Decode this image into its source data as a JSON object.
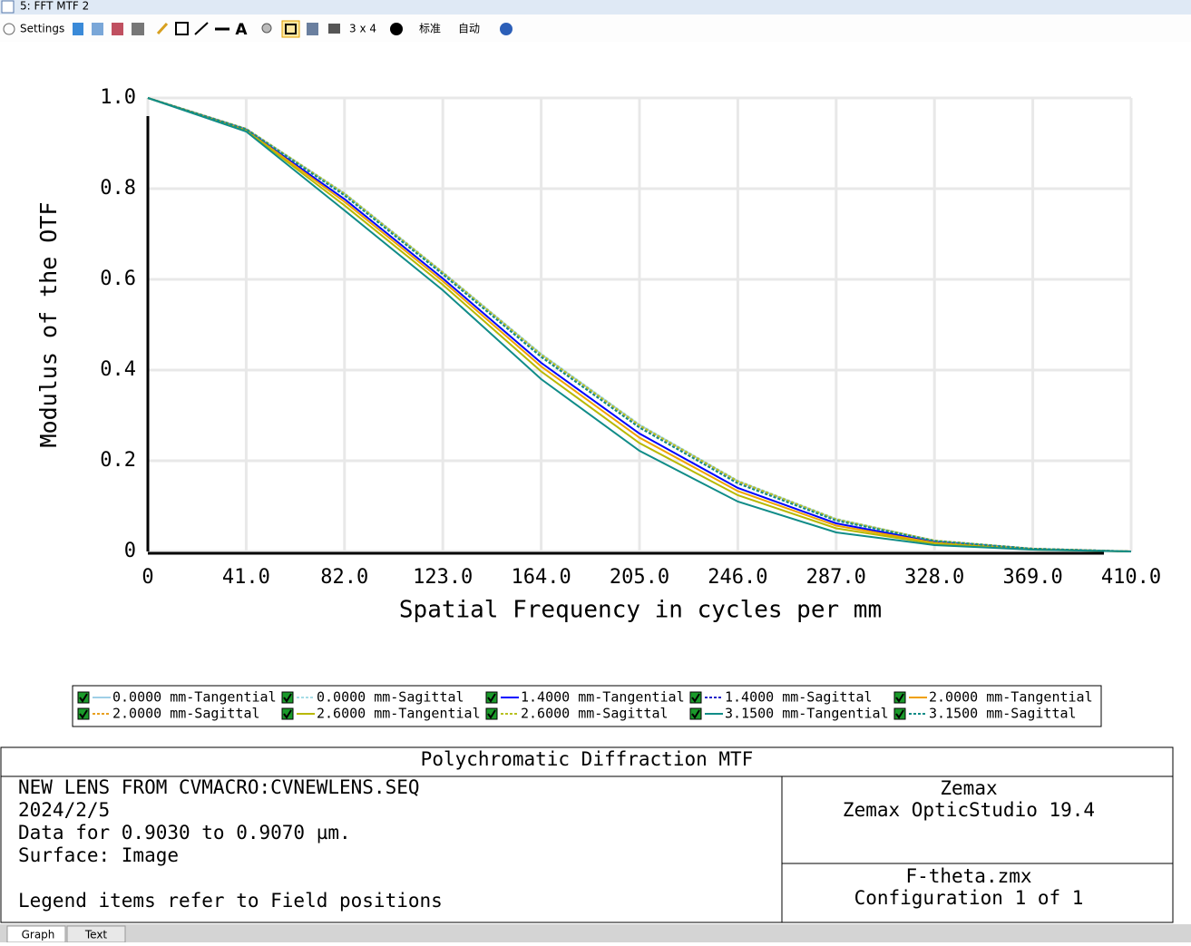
{
  "window": {
    "title": "5: FFT MTF 2"
  },
  "toolbar": {
    "settings": "Settings",
    "layout": "3 x 4",
    "standard": "标准",
    "auto": "自动"
  },
  "chart_data": {
    "type": "line",
    "x_label": "Spatial Frequency in cycles per mm",
    "y_label": "Modulus of the OTF",
    "x": [
      0,
      41,
      82,
      123,
      164,
      205,
      246,
      287,
      328,
      369,
      410
    ],
    "xlim": [
      0,
      410
    ],
    "ylim": [
      0,
      1
    ],
    "xticks": [
      0,
      {
        "value": 41,
        "label": "41.0"
      },
      {
        "value": 82,
        "label": "82.0"
      },
      {
        "value": 123,
        "label": "123.0"
      },
      {
        "value": 164,
        "label": "164.0"
      },
      {
        "value": 205,
        "label": "205.0"
      },
      {
        "value": 246,
        "label": "246.0"
      },
      {
        "value": 287,
        "label": "287.0"
      },
      {
        "value": 328,
        "label": "328.0"
      },
      {
        "value": 369,
        "label": "369.0"
      },
      {
        "value": 410,
        "label": "410.0"
      }
    ],
    "yticks": [
      0,
      {
        "value": 0.2,
        "label": "0.2"
      },
      {
        "value": 0.4,
        "label": "0.4"
      },
      {
        "value": 0.6,
        "label": "0.6"
      },
      {
        "value": 0.8,
        "label": "0.8"
      },
      {
        "value": 1,
        "label": "1.0"
      }
    ],
    "grid": true,
    "series": [
      {
        "name": "0.0000 mm-Tangential",
        "color": "#9fcfe6",
        "style": "solid",
        "values": [
          1,
          0.932,
          0.789,
          0.615,
          0.435,
          0.279,
          0.155,
          0.071,
          0.024,
          0.006,
          0
        ]
      },
      {
        "name": "0.0000 mm-Sagittal",
        "color": "#a6dde6",
        "style": "dotted",
        "values": [
          1,
          0.932,
          0.79,
          0.616,
          0.436,
          0.28,
          0.156,
          0.072,
          0.024,
          0.006,
          0
        ]
      },
      {
        "name": "1.4000 mm-Tangential",
        "color": "#0000ff",
        "style": "solid",
        "values": [
          1,
          0.93,
          0.777,
          0.602,
          0.416,
          0.26,
          0.14,
          0.062,
          0.021,
          0.005,
          0
        ]
      },
      {
        "name": "1.4000 mm-Sagittal",
        "color": "#2020c8",
        "style": "dotted",
        "values": [
          1,
          0.931,
          0.786,
          0.612,
          0.43,
          0.274,
          0.151,
          0.069,
          0.023,
          0.006,
          0
        ]
      },
      {
        "name": "2.0000 mm-Tangential",
        "color": "#f0a000",
        "style": "solid",
        "values": [
          1,
          0.929,
          0.771,
          0.596,
          0.408,
          0.251,
          0.133,
          0.057,
          0.019,
          0.005,
          0
        ]
      },
      {
        "name": "2.0000 mm-Sagittal",
        "color": "#e8a020",
        "style": "dotted",
        "values": [
          1,
          0.932,
          0.788,
          0.614,
          0.433,
          0.277,
          0.154,
          0.07,
          0.024,
          0.006,
          0
        ]
      },
      {
        "name": "2.6000 mm-Tangential",
        "color": "#b8b800",
        "style": "solid",
        "values": [
          1,
          0.928,
          0.763,
          0.588,
          0.397,
          0.239,
          0.124,
          0.051,
          0.017,
          0.004,
          0
        ]
      },
      {
        "name": "2.6000 mm-Sagittal",
        "color": "#b8c020",
        "style": "dotted",
        "values": [
          1,
          0.932,
          0.789,
          0.615,
          0.434,
          0.278,
          0.155,
          0.071,
          0.024,
          0.006,
          0
        ]
      },
      {
        "name": "3.1500 mm-Tangential",
        "color": "#108c88",
        "style": "solid",
        "values": [
          1,
          0.926,
          0.752,
          0.576,
          0.38,
          0.222,
          0.11,
          0.042,
          0.014,
          0.004,
          0
        ]
      },
      {
        "name": "3.1500 mm-Sagittal",
        "color": "#108c88",
        "style": "dotted",
        "values": [
          1,
          0.931,
          0.785,
          0.611,
          0.429,
          0.273,
          0.15,
          0.068,
          0.023,
          0.006,
          0
        ]
      }
    ]
  },
  "info": {
    "title": "Polychromatic Diffraction MTF",
    "left": [
      "NEW LENS FROM CVMACRO:CVNEWLENS.SEQ",
      "2024/2/5",
      "Data for 0.9030 to 0.9070 µm.",
      "Surface: Image",
      "Legend items refer to Field positions"
    ],
    "right_top": [
      "Zemax",
      "Zemax OpticStudio 19.4"
    ],
    "right_bottom": [
      "F-theta.zmx",
      "Configuration 1 of 1"
    ]
  },
  "tabs": [
    "Graph",
    "Text"
  ]
}
